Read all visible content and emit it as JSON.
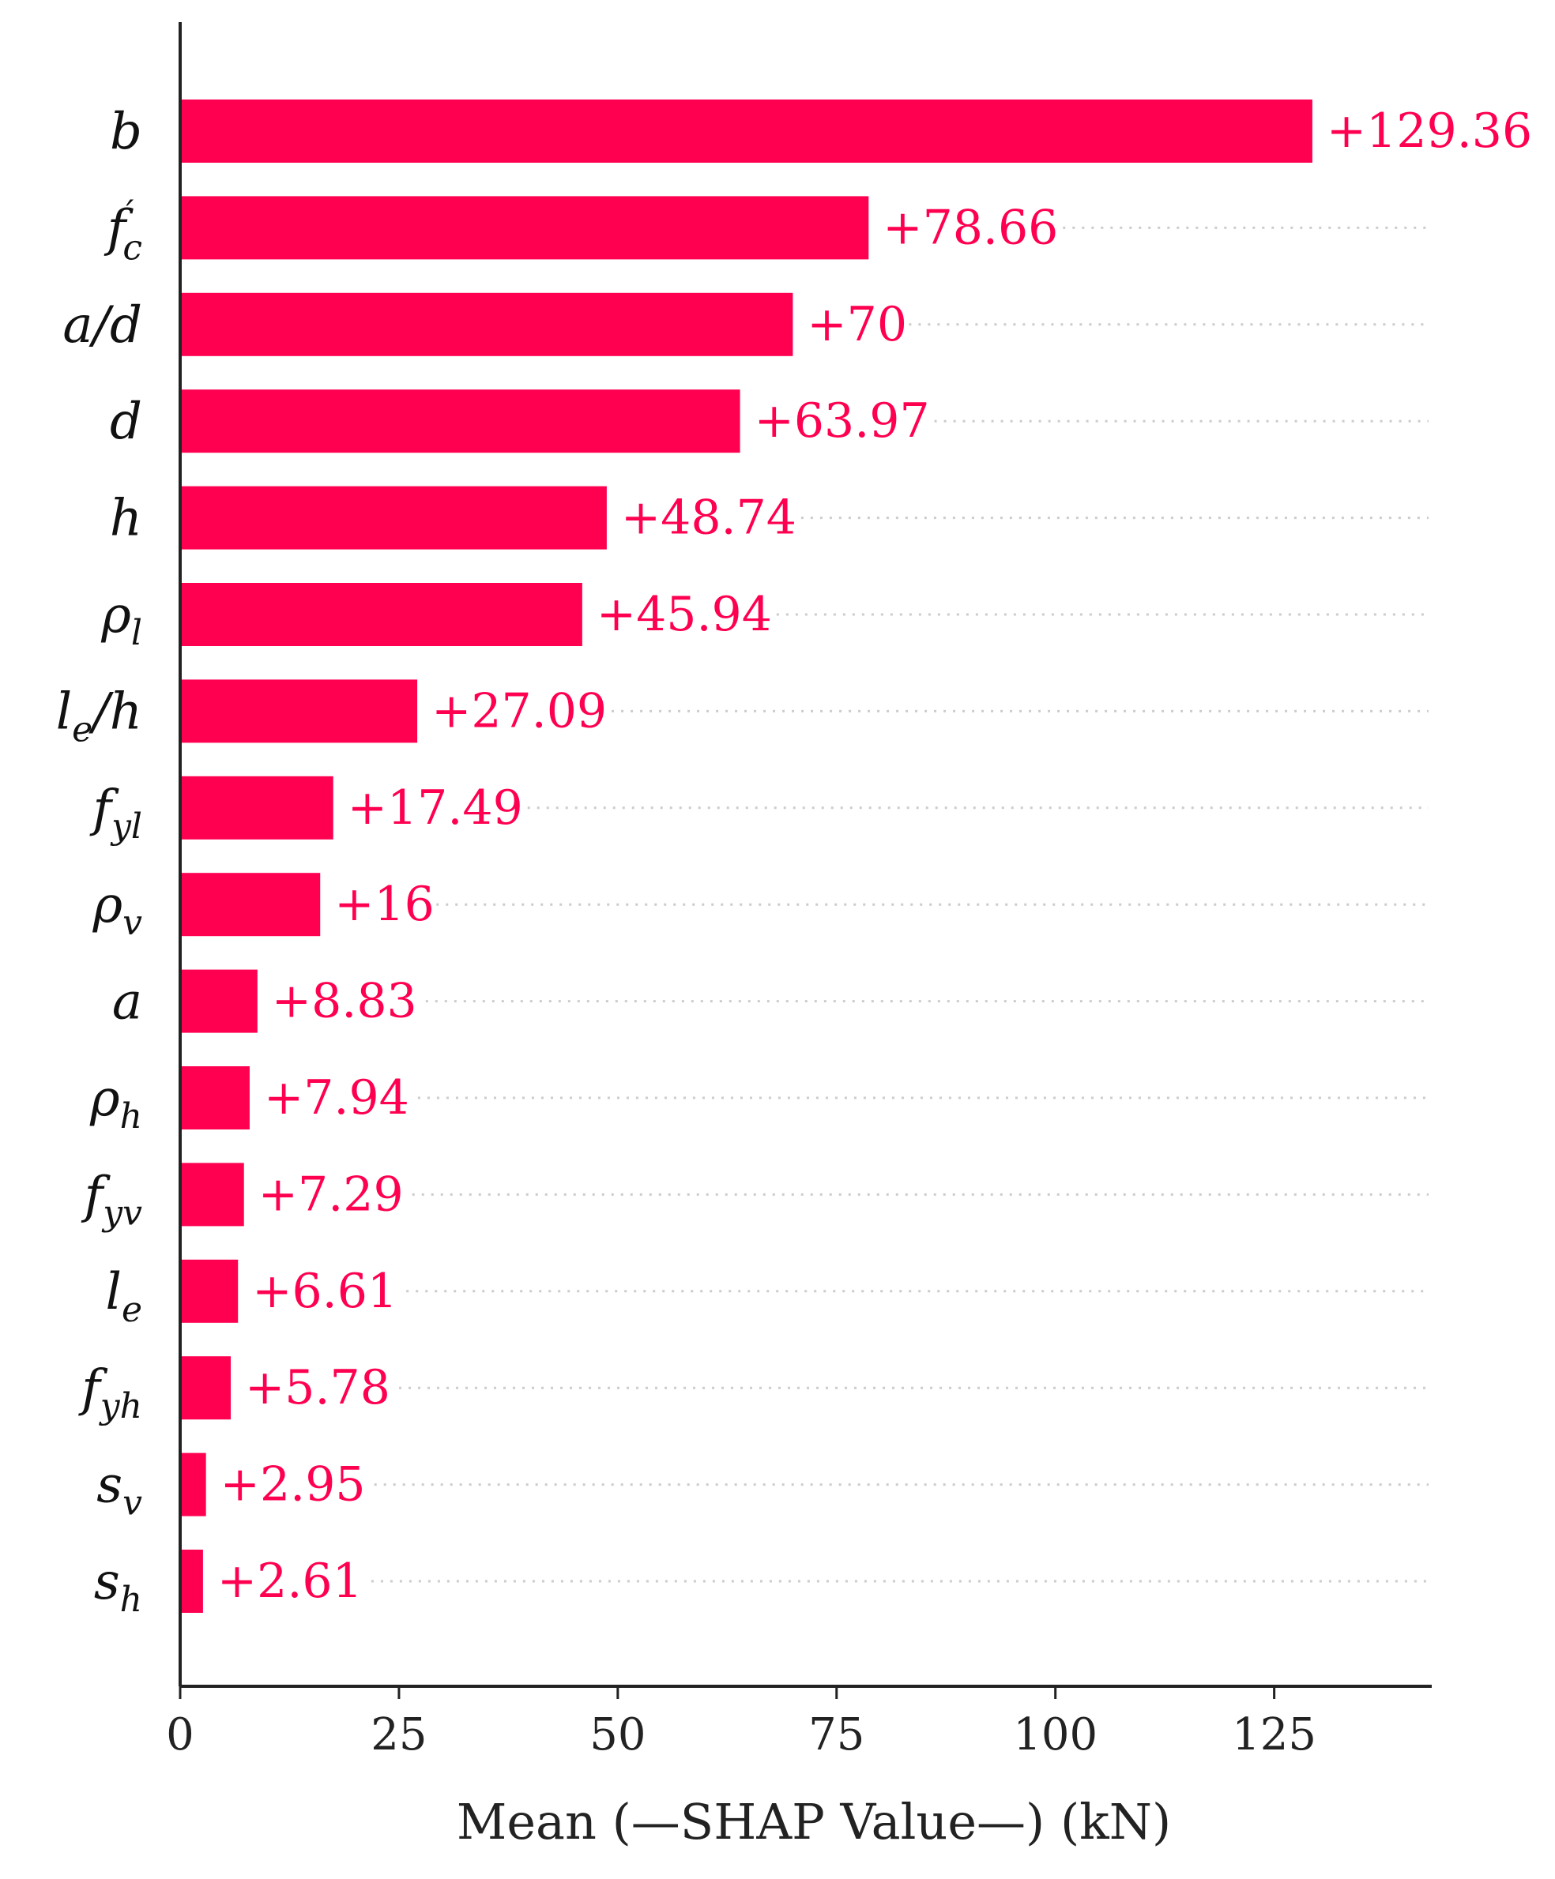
{
  "chart_data": {
    "type": "bar",
    "orientation": "horizontal",
    "categories": [
      {
        "id": "b",
        "base": "b",
        "sub": "",
        "prime": false
      },
      {
        "id": "fc",
        "base": "f",
        "sub": "c",
        "prime": true
      },
      {
        "id": "a_d",
        "base": "a/d",
        "sub": "",
        "prime": false
      },
      {
        "id": "d",
        "base": "d",
        "sub": "",
        "prime": false
      },
      {
        "id": "h",
        "base": "h",
        "sub": "",
        "prime": false
      },
      {
        "id": "rho_l",
        "base": "ρ",
        "sub": "l",
        "prime": false
      },
      {
        "id": "le_h",
        "base": "l",
        "sub": "e",
        "suffix": "/h",
        "prime": false
      },
      {
        "id": "fyl",
        "base": "f",
        "sub": "yl",
        "prime": false
      },
      {
        "id": "rho_v",
        "base": "ρ",
        "sub": "v",
        "prime": false
      },
      {
        "id": "a",
        "base": "a",
        "sub": "",
        "prime": false
      },
      {
        "id": "rho_h",
        "base": "ρ",
        "sub": "h",
        "prime": false
      },
      {
        "id": "fyv",
        "base": "f",
        "sub": "yv",
        "prime": false
      },
      {
        "id": "le",
        "base": "l",
        "sub": "e",
        "prime": false
      },
      {
        "id": "fyh",
        "base": "f",
        "sub": "yh",
        "prime": false
      },
      {
        "id": "sv",
        "base": "s",
        "sub": "v",
        "prime": false
      },
      {
        "id": "sh",
        "base": "s",
        "sub": "h",
        "prime": false
      }
    ],
    "values": [
      129.36,
      78.66,
      70,
      63.97,
      48.74,
      45.94,
      27.09,
      17.49,
      16,
      8.83,
      7.94,
      7.29,
      6.61,
      5.78,
      2.95,
      2.61
    ],
    "value_labels": [
      "+129.36",
      "+78.66",
      "+70",
      "+63.97",
      "+48.74",
      "+45.94",
      "+27.09",
      "+17.49",
      "+16",
      "+8.83",
      "+7.94",
      "+7.29",
      "+6.61",
      "+5.78",
      "+2.95",
      "+2.61"
    ],
    "xlabel": "Mean (—SHAP Value—) (kN)",
    "xlim": [
      0,
      143
    ],
    "xticks": [
      0,
      25,
      50,
      75,
      100,
      125
    ],
    "xtick_labels": [
      "0",
      "25",
      "50",
      "75",
      "100",
      "125"
    ],
    "grid": "dotted horizontal guide lines per bar",
    "legend": "none"
  },
  "colors": {
    "bar": "#ff0051",
    "value_text": "#ff0051",
    "axis": "#222222",
    "guide": "#cccccc"
  }
}
